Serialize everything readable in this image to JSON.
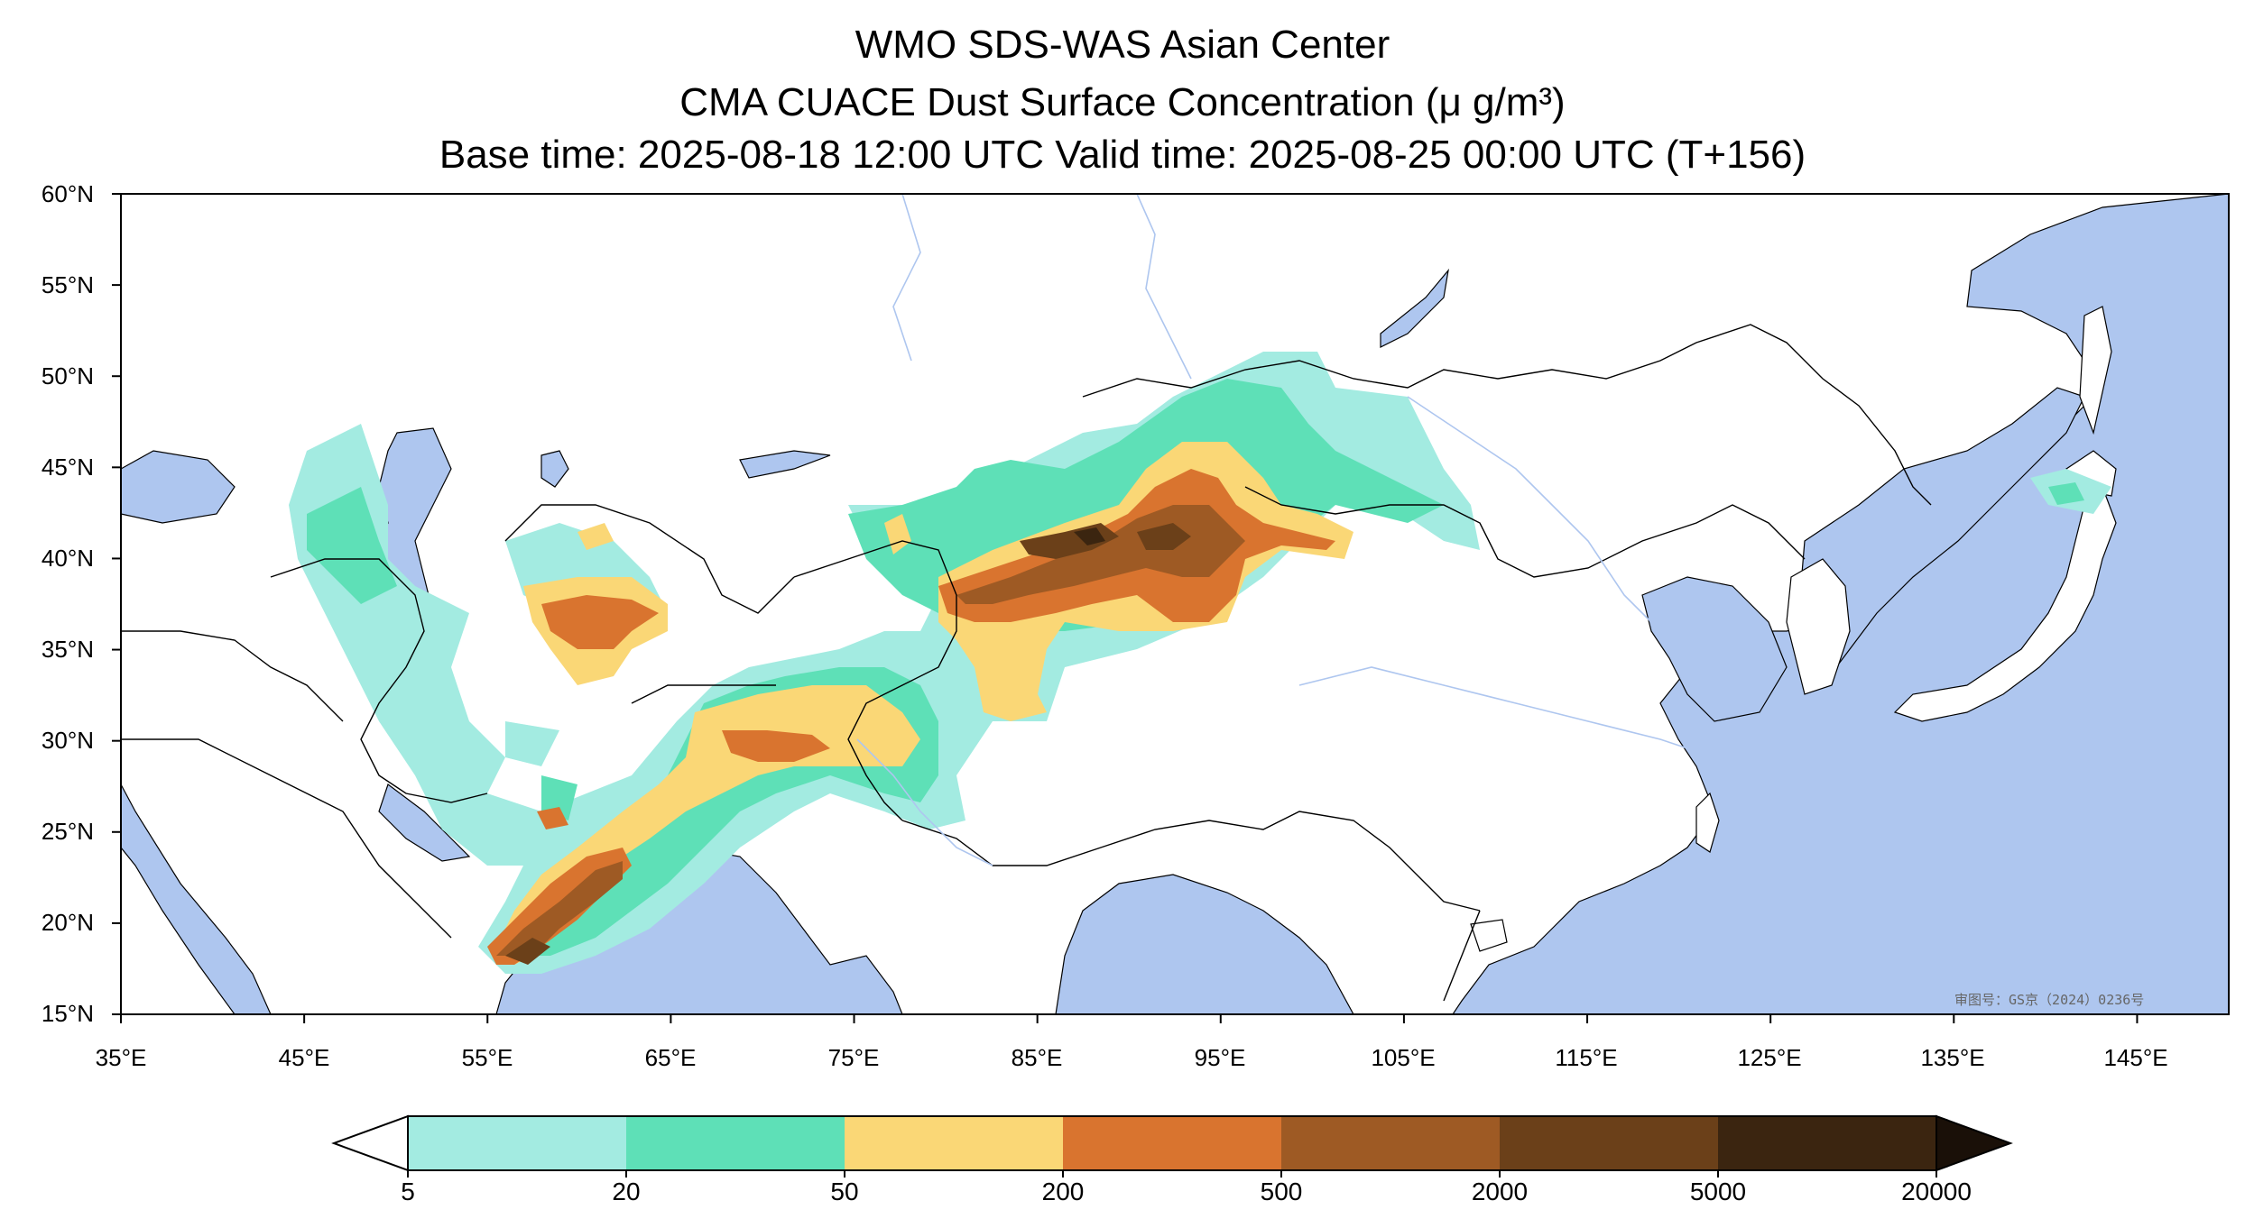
{
  "title": {
    "line1": "WMO SDS-WAS Asian Center",
    "line2": "CMA CUACE Dust Surface Concentration (μ g/m³)",
    "line3": "Base time: 2025-08-18 12:00 UTC Valid time: 2025-08-25 00:00 UTC (T+156)"
  },
  "map": {
    "lon_range": [
      35,
      150
    ],
    "lat_range": [
      15,
      60
    ],
    "lat_ticks": [
      "60°N",
      "55°N",
      "50°N",
      "45°N",
      "40°N",
      "35°N",
      "30°N",
      "25°N",
      "20°N",
      "15°N"
    ],
    "lon_ticks": [
      "35°E",
      "45°E",
      "55°E",
      "65°E",
      "75°E",
      "85°E",
      "95°E",
      "105°E",
      "115°E",
      "125°E",
      "135°E",
      "145°E"
    ],
    "credit": "审图号：GS京（2024）0236号",
    "ocean_color": "#aec6ef"
  },
  "colorbar": {
    "levels": [
      "5",
      "20",
      "50",
      "200",
      "500",
      "2000",
      "5000",
      "20000"
    ],
    "colors": [
      "#a3ebe1",
      "#5ee0b7",
      "#fad776",
      "#d9742f",
      "#9e5a24",
      "#6b4019",
      "#3b2510",
      "#1a1008"
    ],
    "extend": "both"
  }
}
